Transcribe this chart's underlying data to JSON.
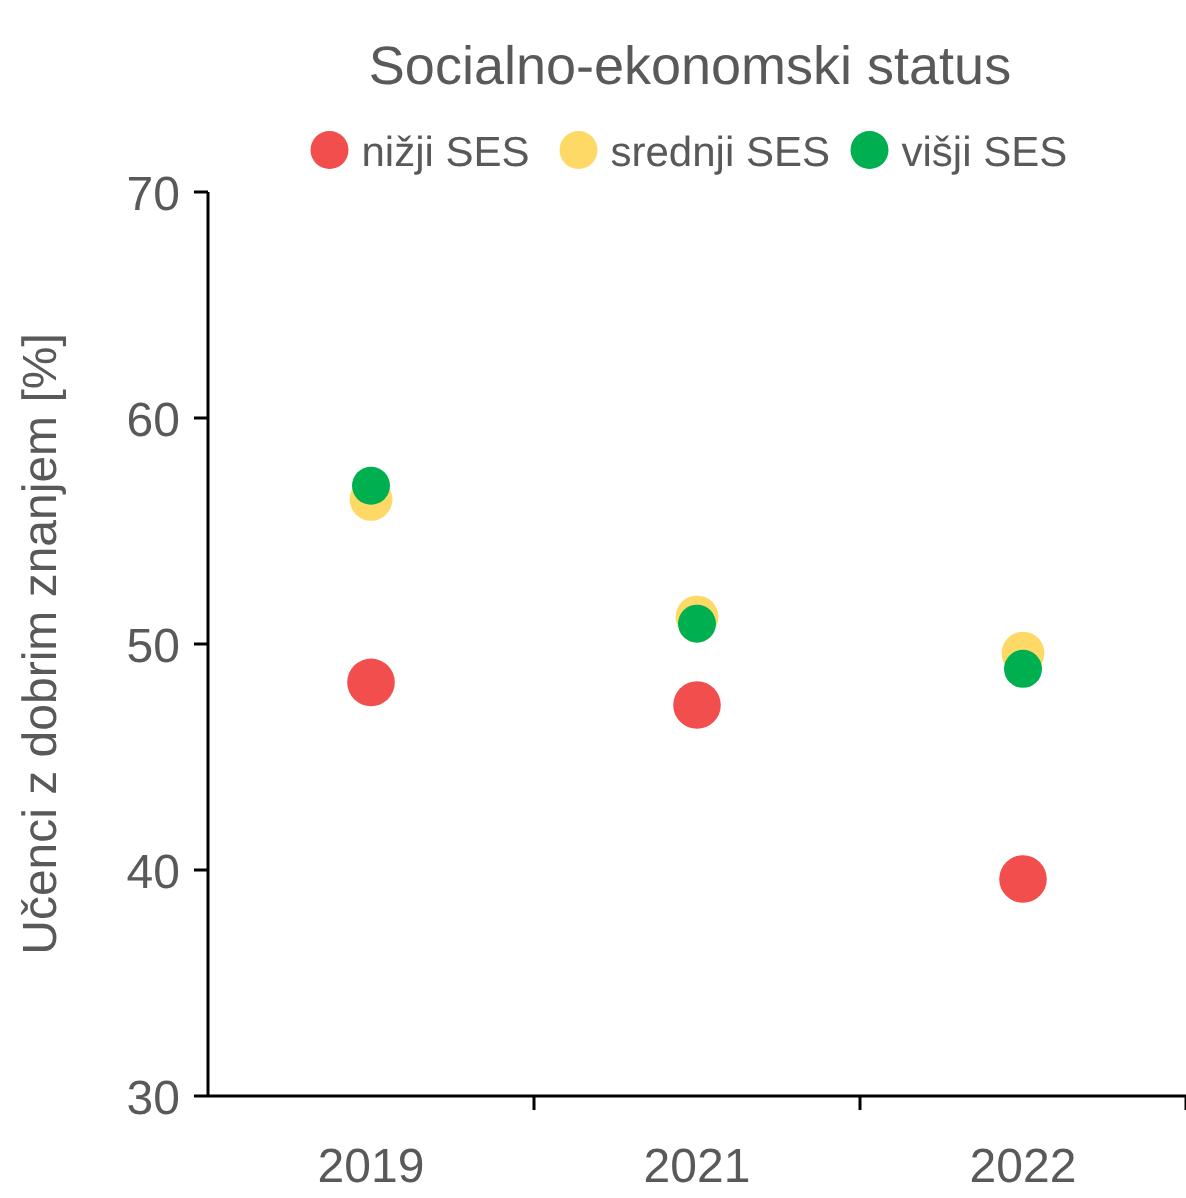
{
  "chart_data": {
    "type": "scatter",
    "title": "Socialno-ekonomski status",
    "ylabel": "Učenci z dobrim znanjem [%]",
    "categories": [
      "2019",
      "2021",
      "2022"
    ],
    "series": [
      {
        "name": "nižji SES",
        "color": "#f24e4e",
        "values": [
          48.3,
          47.3,
          39.6
        ]
      },
      {
        "name": "srednji SES",
        "color": "#ffd966",
        "values": [
          56.4,
          51.2,
          49.6
        ]
      },
      {
        "name": "višji SES",
        "color": "#00b050",
        "values": [
          57.0,
          50.9,
          48.9
        ]
      }
    ],
    "ylim": [
      30,
      70
    ],
    "yticks": [
      30,
      40,
      50,
      60,
      70
    ],
    "grid": false,
    "legend": "top",
    "marker": "circle"
  }
}
